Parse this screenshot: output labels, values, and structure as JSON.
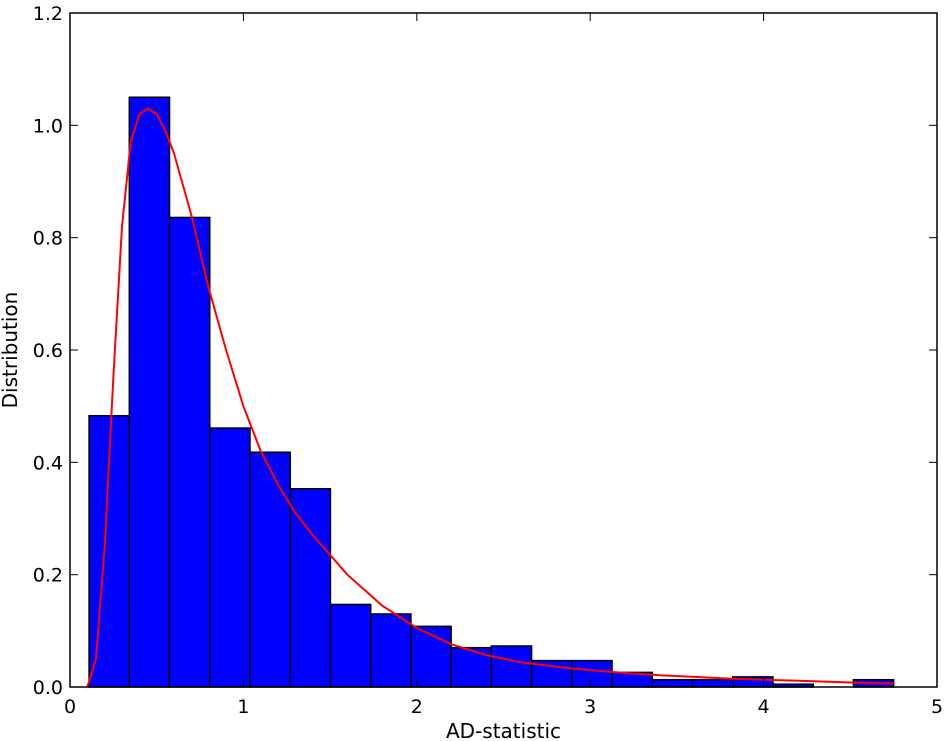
{
  "chart_data": {
    "type": "bar",
    "subtype": "histogram-with-density-curve",
    "title": "",
    "xlabel": "AD-statistic",
    "ylabel": "Distribution",
    "xlim": [
      0,
      5
    ],
    "ylim": [
      0,
      1.2
    ],
    "xticks": [
      "0",
      "1",
      "2",
      "3",
      "4",
      "5"
    ],
    "yticks": [
      "0.0",
      "0.2",
      "0.4",
      "0.6",
      "0.8",
      "1.0",
      "1.2"
    ],
    "grid": false,
    "legend": "none",
    "bin_edges": [
      0.11,
      0.342,
      0.574,
      0.806,
      1.038,
      1.27,
      1.502,
      1.734,
      1.966,
      2.198,
      2.43,
      2.662,
      2.894,
      3.126,
      3.358,
      3.59,
      3.822,
      4.054,
      4.286,
      4.518,
      4.75
    ],
    "values": [
      0.483,
      1.05,
      0.836,
      0.461,
      0.418,
      0.353,
      0.147,
      0.13,
      0.108,
      0.07,
      0.073,
      0.047,
      0.047,
      0.026,
      0.013,
      0.013,
      0.018,
      0.005,
      0.0,
      0.013
    ],
    "curve": {
      "x": [
        0.1,
        0.15,
        0.2,
        0.25,
        0.3,
        0.35,
        0.4,
        0.45,
        0.5,
        0.55,
        0.6,
        0.7,
        0.8,
        0.9,
        1.0,
        1.1,
        1.2,
        1.3,
        1.4,
        1.5,
        1.6,
        1.8,
        2.0,
        2.2,
        2.4,
        2.6,
        2.8,
        3.0,
        3.2,
        3.4,
        3.6,
        3.8,
        4.0,
        4.2,
        4.4,
        4.6,
        4.75
      ],
      "y": [
        0.0,
        0.05,
        0.25,
        0.55,
        0.82,
        0.97,
        1.02,
        1.03,
        1.02,
        0.99,
        0.95,
        0.84,
        0.71,
        0.6,
        0.5,
        0.42,
        0.36,
        0.31,
        0.27,
        0.235,
        0.2,
        0.145,
        0.105,
        0.076,
        0.057,
        0.044,
        0.036,
        0.03,
        0.025,
        0.021,
        0.018,
        0.015,
        0.013,
        0.011,
        0.009,
        0.007,
        0.006
      ]
    },
    "colors": {
      "bars": "#0000ff",
      "bar_edge": "#000000",
      "curve": "#ff0000"
    }
  }
}
